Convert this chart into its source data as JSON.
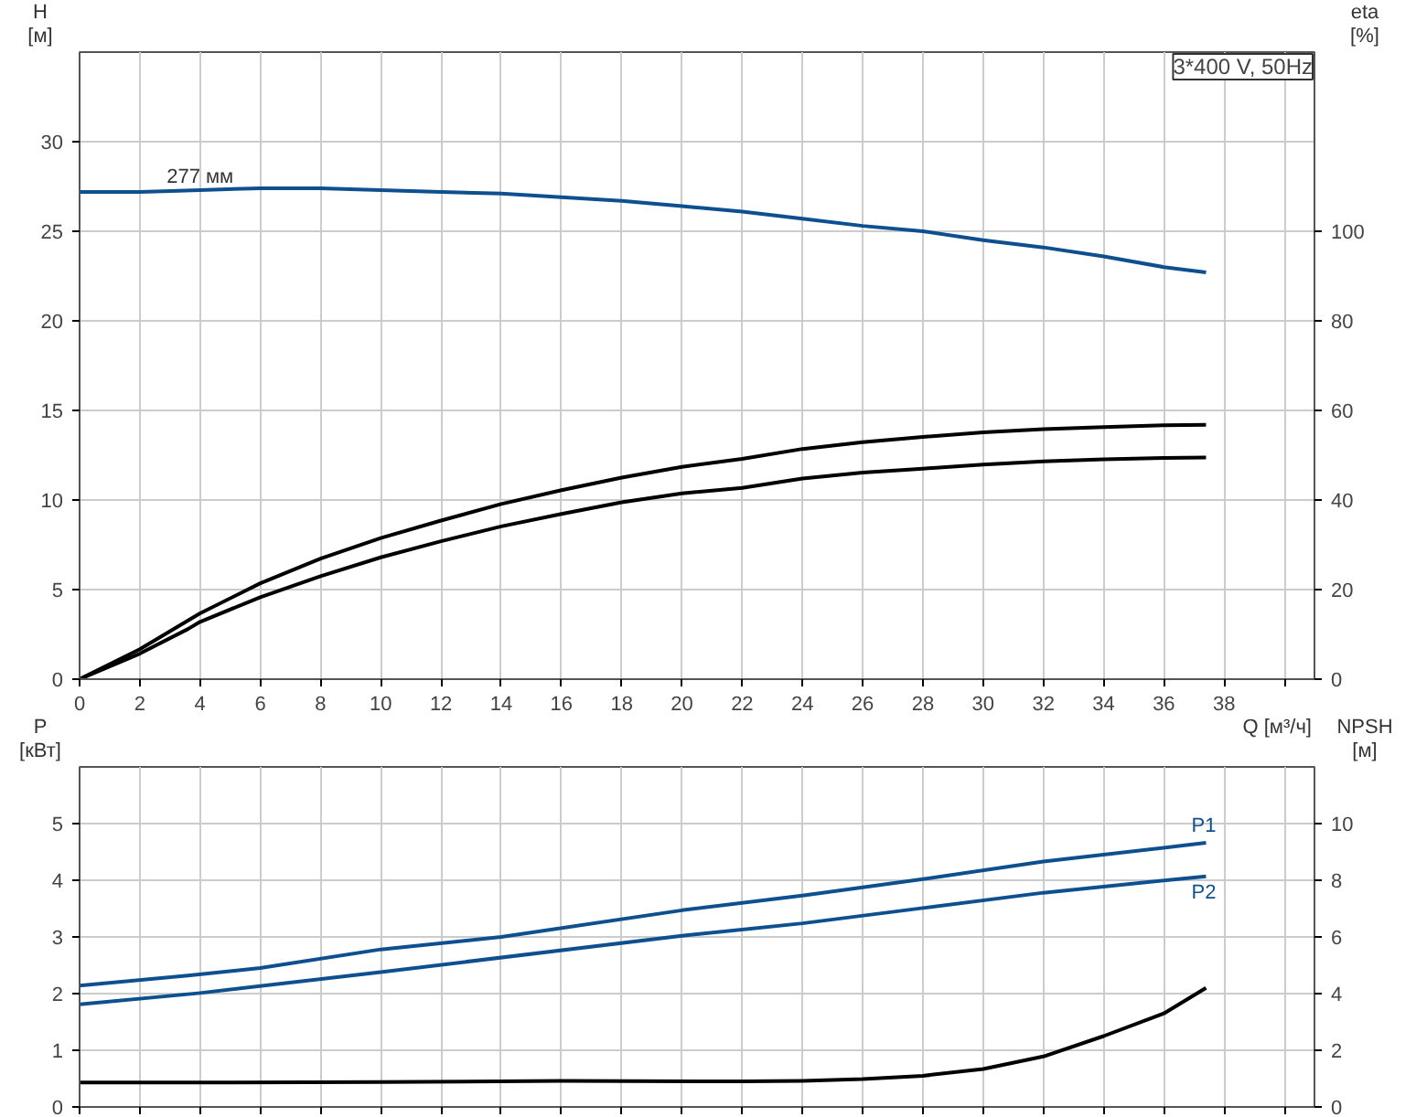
{
  "chart_data": [
    {
      "type": "line",
      "title": "3*400 V, 50Hz",
      "ylabel": "H [м]",
      "y2label": "eta [%]",
      "xlabel": "Q [м³/ч]",
      "grid": true,
      "xlim": [
        0,
        41
      ],
      "xticks": [
        0,
        2,
        4,
        6,
        8,
        10,
        12,
        14,
        16,
        18,
        20,
        22,
        24,
        26,
        28,
        30,
        32,
        34,
        36,
        38,
        {
          "value": 40,
          "label": null
        }
      ],
      "ylim": [
        0,
        35
      ],
      "yticks": [
        0,
        5,
        10,
        15,
        20,
        25,
        30
      ],
      "y2lim": [
        0,
        140
      ],
      "y2ticks": [
        0,
        20,
        40,
        60,
        80,
        100
      ],
      "annotations": [
        {
          "text": "277 мм",
          "x": 4,
          "y": 27.3
        }
      ],
      "series": [
        {
          "color": "#0e4f8f",
          "x": [
            0,
            2,
            4,
            6,
            8,
            10,
            12,
            14,
            16,
            18,
            20,
            22,
            24,
            26,
            28,
            30,
            32,
            34,
            36,
            37.4
          ],
          "values": [
            27.2,
            27.2,
            27.3,
            27.4,
            27.4,
            27.3,
            27.2,
            27.1,
            26.9,
            26.7,
            26.4,
            26.1,
            25.7,
            25.3,
            25.0,
            24.5,
            24.1,
            23.6,
            23.0,
            22.7
          ]
        },
        {
          "color": "#000000",
          "axis": "y2",
          "x": [
            0,
            2,
            4,
            6,
            8,
            10,
            12,
            14,
            16,
            18,
            20,
            22,
            24,
            26,
            28,
            30,
            32,
            34,
            36,
            37.4
          ],
          "values": [
            0,
            6.7,
            14.7,
            21.4,
            26.9,
            31.5,
            35.4,
            39.1,
            42.2,
            45.0,
            47.4,
            49.2,
            51.4,
            52.9,
            54.1,
            55.1,
            55.8,
            56.3,
            56.7,
            56.8
          ]
        },
        {
          "color": "#000000",
          "axis": "y2",
          "x": [
            0,
            2,
            3.6,
            4,
            6,
            8,
            10,
            12,
            14,
            16,
            18,
            20,
            22,
            24,
            26,
            28,
            30,
            32,
            34,
            36,
            37.4
          ],
          "values": [
            0,
            5.7,
            11.2,
            12.8,
            18.3,
            23.0,
            27.2,
            30.8,
            34.1,
            36.9,
            39.5,
            41.5,
            42.7,
            44.8,
            46.1,
            47.0,
            47.9,
            48.6,
            49.1,
            49.4,
            49.5
          ]
        }
      ]
    },
    {
      "type": "line",
      "ylabel": "P [кВт]",
      "y2label": "NPSH [м]",
      "grid": true,
      "tick_labels": "y",
      "xlim": [
        0,
        41
      ],
      "xticks": [
        0,
        2,
        4,
        6,
        8,
        10,
        12,
        14,
        16,
        18,
        20,
        22,
        24,
        26,
        28,
        30,
        32,
        34,
        36,
        38,
        40
      ],
      "ylim": [
        0,
        6
      ],
      "yticks": [
        0,
        1,
        2,
        3,
        4,
        5
      ],
      "y2lim": [
        0,
        12
      ],
      "y2ticks": [
        0,
        2,
        4,
        6,
        8,
        10
      ],
      "series": [
        {
          "name": "P1",
          "color": "#0e4f8f",
          "x": [
            0,
            3.6,
            6,
            10,
            14,
            20,
            24,
            28,
            32,
            37.4
          ],
          "values": [
            2.14,
            2.32,
            2.45,
            2.78,
            3.0,
            3.47,
            3.73,
            4.02,
            4.33,
            4.66
          ]
        },
        {
          "name": "P2",
          "color": "#0e4f8f",
          "x": [
            0,
            4,
            10,
            20,
            24,
            28,
            32,
            37.4
          ],
          "values": [
            1.81,
            2.01,
            2.38,
            3.02,
            3.24,
            3.51,
            3.78,
            4.07
          ]
        },
        {
          "color": "#000000",
          "axis": "y2",
          "x": [
            0,
            3.6,
            10,
            16,
            22,
            24,
            26,
            28,
            30,
            32,
            34,
            36,
            37.4
          ],
          "values": [
            0.86,
            0.86,
            0.88,
            0.92,
            0.9,
            0.92,
            0.98,
            1.1,
            1.34,
            1.78,
            2.5,
            3.3,
            4.2
          ]
        }
      ]
    }
  ]
}
